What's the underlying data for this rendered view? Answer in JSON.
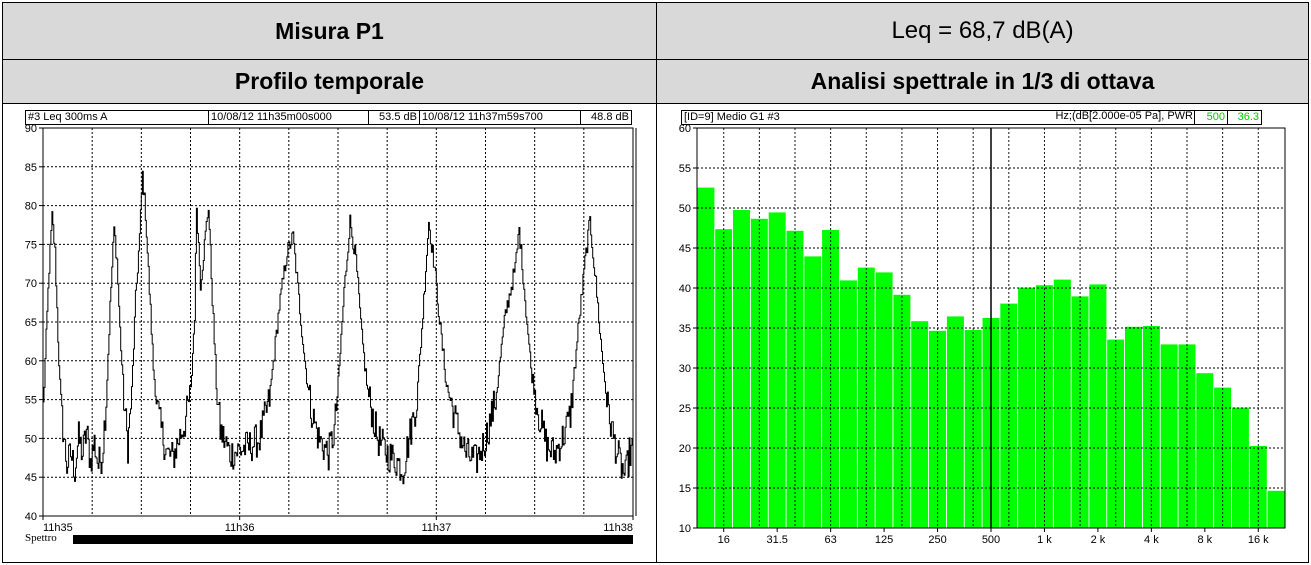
{
  "header": {
    "measure_title": "Misura P1",
    "leq": "Leq = 68,7 dB(A)",
    "left_section": "Profilo temporale",
    "right_section": "Analisi spettrale in 1/3 di ottava"
  },
  "time_panel": {
    "status_label": "#3   Leq 300ms  A",
    "start_time": "10/08/12 11h35m00s000",
    "start_value": "53.5",
    "start_unit": "dB",
    "end_time": "10/08/12 11h37m59s700",
    "end_value": "48.8",
    "end_unit": "dB",
    "spettro_label": "Spettro"
  },
  "spectrum_panel": {
    "status_label": "[ID=9]  Medio G1 #3",
    "units_label": "Hz;(dB[2.000e-05 Pa], PWR",
    "cursor_freq": "500",
    "cursor_value": "36.3"
  },
  "colors": {
    "header_bg": "#d9d9d9",
    "bar_fill": "#00ff00",
    "cursor_text": "#00cc00"
  },
  "chart_data": [
    {
      "type": "line",
      "x_unit": "minutes from 11h35",
      "xlim": [
        0,
        3
      ],
      "ylim": [
        40,
        90
      ],
      "x_ticks": [
        0,
        1,
        2,
        3
      ],
      "x_tick_labels": [
        "11h35",
        "11h36",
        "11h37",
        "11h38"
      ],
      "y_ticks": [
        40,
        45,
        50,
        55,
        60,
        65,
        70,
        75,
        80,
        85,
        90
      ],
      "grid": true,
      "keypoints": [
        [
          0,
          54
        ],
        [
          0.015,
          63
        ],
        [
          0.03,
          72
        ],
        [
          0.045,
          78.5
        ],
        [
          0.06,
          74
        ],
        [
          0.075,
          63
        ],
        [
          0.09,
          54
        ],
        [
          0.105,
          50
        ],
        [
          0.12,
          46.5
        ],
        [
          0.14,
          48
        ],
        [
          0.16,
          46
        ],
        [
          0.18,
          50
        ],
        [
          0.2,
          48
        ],
        [
          0.22,
          51
        ],
        [
          0.24,
          47
        ],
        [
          0.26,
          49.5
        ],
        [
          0.28,
          46.5
        ],
        [
          0.3,
          48
        ],
        [
          0.32,
          55
        ],
        [
          0.34,
          67
        ],
        [
          0.36,
          77
        ],
        [
          0.375,
          73
        ],
        [
          0.39,
          64
        ],
        [
          0.41,
          55
        ],
        [
          0.43,
          49
        ],
        [
          0.45,
          56
        ],
        [
          0.47,
          68
        ],
        [
          0.49,
          76
        ],
        [
          0.505,
          84
        ],
        [
          0.52,
          79
        ],
        [
          0.54,
          69
        ],
        [
          0.56,
          59
        ],
        [
          0.58,
          54
        ],
        [
          0.6,
          51
        ],
        [
          0.63,
          48
        ],
        [
          0.66,
          47.5
        ],
        [
          0.69,
          50
        ],
        [
          0.72,
          52
        ],
        [
          0.75,
          56
        ],
        [
          0.77,
          66
        ],
        [
          0.78,
          80
        ],
        [
          0.8,
          70
        ],
        [
          0.82,
          75
        ],
        [
          0.84,
          80
        ],
        [
          0.86,
          68
        ],
        [
          0.88,
          57
        ],
        [
          0.9,
          51
        ],
        [
          0.95,
          48
        ],
        [
          1.0,
          48.5
        ],
        [
          1.05,
          49
        ],
        [
          1.1,
          50
        ],
        [
          1.15,
          55
        ],
        [
          1.2,
          67
        ],
        [
          1.24,
          74
        ],
        [
          1.27,
          76
        ],
        [
          1.3,
          68
        ],
        [
          1.33,
          60
        ],
        [
          1.36,
          54
        ],
        [
          1.4,
          50
        ],
        [
          1.45,
          48
        ],
        [
          1.48,
          51
        ],
        [
          1.5,
          57
        ],
        [
          1.53,
          69
        ],
        [
          1.56,
          78
        ],
        [
          1.59,
          73
        ],
        [
          1.62,
          63
        ],
        [
          1.65,
          56
        ],
        [
          1.7,
          50
        ],
        [
          1.75,
          48
        ],
        [
          1.8,
          47
        ],
        [
          1.83,
          46
        ],
        [
          1.86,
          50
        ],
        [
          1.9,
          55
        ],
        [
          1.93,
          66
        ],
        [
          1.96,
          78
        ],
        [
          1.99,
          72
        ],
        [
          2.02,
          64
        ],
        [
          2.05,
          57
        ],
        [
          2.1,
          52
        ],
        [
          2.15,
          48
        ],
        [
          2.2,
          47
        ],
        [
          2.25,
          50
        ],
        [
          2.3,
          55
        ],
        [
          2.35,
          66
        ],
        [
          2.4,
          72
        ],
        [
          2.42,
          77
        ],
        [
          2.45,
          68
        ],
        [
          2.48,
          59
        ],
        [
          2.52,
          53
        ],
        [
          2.56,
          49
        ],
        [
          2.6,
          48
        ],
        [
          2.64,
          50
        ],
        [
          2.68,
          53
        ],
        [
          2.72,
          64
        ],
        [
          2.76,
          74
        ],
        [
          2.78,
          78
        ],
        [
          2.81,
          70
        ],
        [
          2.84,
          61
        ],
        [
          2.87,
          54
        ],
        [
          2.9,
          50
        ],
        [
          2.93,
          47
        ],
        [
          2.96,
          45
        ],
        [
          2.98,
          48
        ],
        [
          3.0,
          48.8
        ]
      ]
    },
    {
      "type": "bar",
      "ylim": [
        10,
        60
      ],
      "y_ticks": [
        10,
        15,
        20,
        25,
        30,
        35,
        40,
        45,
        50,
        55,
        60
      ],
      "categories": [
        "12.5",
        "16",
        "20",
        "25",
        "31.5",
        "40",
        "50",
        "63",
        "80",
        "100",
        "125",
        "160",
        "200",
        "250",
        "315",
        "400",
        "500",
        "630",
        "800",
        "1k",
        "1.25k",
        "1.6k",
        "2k",
        "2.5k",
        "3.15k",
        "4k",
        "5k",
        "6.3k",
        "8k",
        "10k",
        "12.5k",
        "16k",
        "20k"
      ],
      "values": [
        52.6,
        47.4,
        49.8,
        48.7,
        49.5,
        47.2,
        44.0,
        47.3,
        41.0,
        42.6,
        42.0,
        39.2,
        35.9,
        34.7,
        36.5,
        34.8,
        36.3,
        38.1,
        40.1,
        40.4,
        41.1,
        39.0,
        40.5,
        33.6,
        35.2,
        35.3,
        33.0,
        33.0,
        29.4,
        27.6,
        25.1,
        20.3,
        14.7
      ],
      "x_tick_labels": [
        "16",
        "31.5",
        "63",
        "125",
        "250",
        "500",
        "1 k",
        "2 k",
        "4 k",
        "8 k",
        "16 k"
      ],
      "x_tick_indices": [
        1,
        4,
        7,
        10,
        13,
        16,
        19,
        22,
        25,
        28,
        31
      ],
      "cursor_index": 16,
      "grid": true
    }
  ]
}
